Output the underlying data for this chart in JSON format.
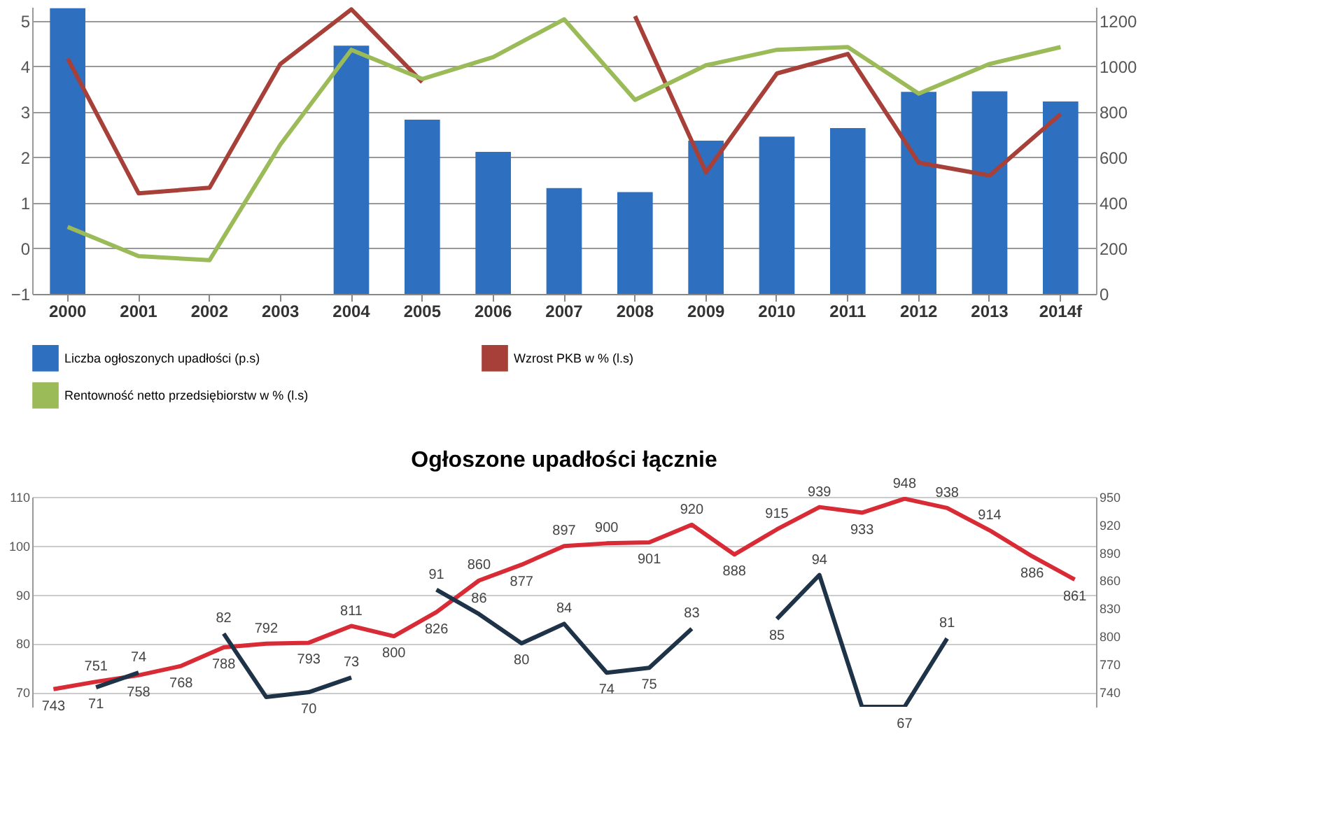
{
  "chart_data": [
    {
      "type": "bar",
      "categories": [
        "2000",
        "2001",
        "2002",
        "2003",
        "2004",
        "2005",
        "2006",
        "2007",
        "2008",
        "2009",
        "2010",
        "2011",
        "2012",
        "2013",
        "2014f"
      ],
      "series": [
        {
          "name": "Liczba ogłoszonych upadłości (p.s)",
          "axis": "y2",
          "color": "#2f6fbf",
          "values": [
            1255,
            null,
            null,
            null,
            1090,
            765,
            624,
            465,
            447,
            673,
            691,
            728,
            887,
            890,
            845
          ]
        },
        {
          "name": "Wzrost PKB w % (l.s)",
          "type": "line",
          "color": "#a8403a",
          "values": [
            4.17,
            1.21,
            1.33,
            4.05,
            5.25,
            3.65,
            null,
            null,
            5.1,
            1.67,
            3.84,
            4.27,
            1.88,
            1.6,
            2.95
          ]
        },
        {
          "name": "Rentowność netto przedsiębiorstw w % (l.s)",
          "type": "line",
          "color": "#9bbb59",
          "values": [
            0.47,
            -0.17,
            -0.26,
            2.28,
            4.36,
            3.72,
            4.2,
            5.03,
            3.26,
            4.02,
            4.36,
            4.42,
            3.4,
            4.05,
            4.42
          ]
        }
      ],
      "ylim": [
        -1,
        5.3
      ],
      "yticks": [
        -1,
        0,
        1,
        2,
        3,
        4,
        5
      ],
      "y2lim": [
        0,
        1260
      ],
      "y2ticks": [
        0,
        200,
        400,
        600,
        800,
        1000,
        1200
      ],
      "grid": "y",
      "legend": "bottom"
    },
    {
      "type": "line",
      "title": "Ogłoszone upadłości łącznie",
      "categories": [
        null,
        null,
        null,
        null,
        null,
        null,
        null,
        null,
        null,
        null,
        null,
        null,
        null,
        null,
        null,
        null,
        null,
        null,
        null,
        null,
        null,
        null,
        null,
        null,
        null
      ],
      "series": [
        {
          "axis": "y2",
          "color": "#d92b35",
          "values": [
            743,
            751,
            758,
            768,
            788,
            792,
            793,
            811,
            800,
            826,
            860,
            877,
            897,
            900,
            901,
            920,
            888,
            915,
            939,
            933,
            948,
            938,
            914,
            886,
            861
          ],
          "value_labels": [
            "743",
            "751",
            "758",
            "768",
            "788",
            "792",
            "793",
            "811",
            "800",
            "826",
            "860",
            "877",
            "897",
            "900",
            "901",
            "920",
            "888",
            "915",
            "939",
            "933",
            "948",
            "938",
            "914",
            "886",
            "861"
          ]
        },
        {
          "color": "#1f3348",
          "values": [
            null,
            71,
            74,
            null,
            82,
            69,
            70,
            73,
            null,
            91,
            86,
            80,
            84,
            74,
            75,
            83,
            null,
            85,
            94,
            67,
            67,
            81,
            null,
            null,
            null
          ],
          "value_labels": [
            null,
            "71",
            "74",
            null,
            "82",
            null,
            "70",
            "73",
            null,
            "91",
            "86",
            "80",
            "84",
            "74",
            "75",
            "83",
            null,
            "85",
            "94",
            null,
            "67",
            "81",
            null,
            null,
            null
          ]
        }
      ],
      "ylim": [
        67,
        110
      ],
      "yticks": [
        70,
        80,
        90,
        100,
        110
      ],
      "y2lim": [
        724,
        950
      ],
      "y2ticks": [
        740,
        770,
        800,
        830,
        860,
        890,
        920,
        950
      ],
      "grid": "y"
    }
  ]
}
